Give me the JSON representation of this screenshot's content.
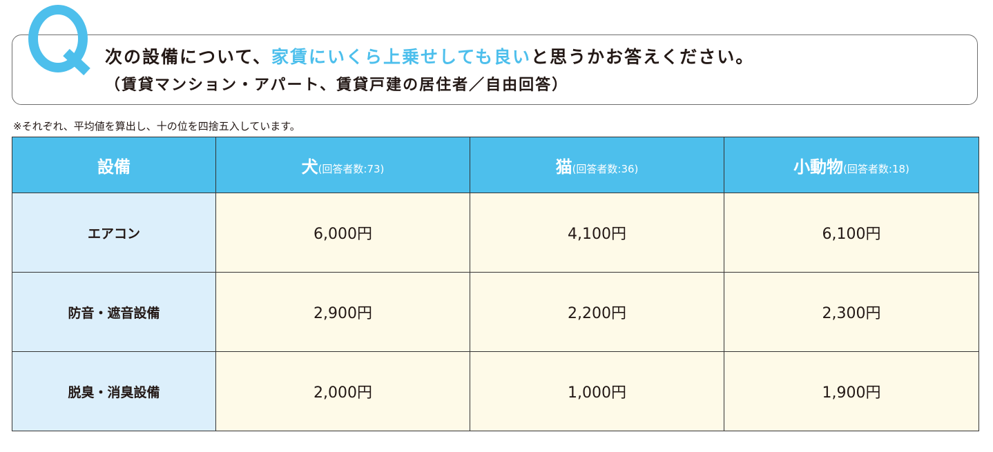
{
  "question": {
    "mark": "Q",
    "line1_prefix": "次の設備について、",
    "line1_highlight": "家賃にいくら上乗せしても良い",
    "line1_suffix": "と思うかお答えください。",
    "line2": "（賃貸マンション・アパート、賃貸戸建の居住者／自由回答）"
  },
  "note": "※それぞれ、平均値を算出し、十の位を四捨五入しています。",
  "colors": {
    "accent": "#4dbfec",
    "label_bg": "#dceffb",
    "cell_bg": "#fefae8"
  },
  "table": {
    "headers": [
      {
        "main": "設備",
        "sub": ""
      },
      {
        "main": "犬",
        "sub": "(回答者数:73)"
      },
      {
        "main": "猫",
        "sub": "(回答者数:36)"
      },
      {
        "main": "小動物",
        "sub": "(回答者数:18)"
      }
    ],
    "rows": [
      {
        "label": "エアコン",
        "values": [
          "6,000円",
          "4,100円",
          "6,100円"
        ]
      },
      {
        "label": "防音・遮音設備",
        "values": [
          "2,900円",
          "2,200円",
          "2,300円"
        ]
      },
      {
        "label": "脱臭・消臭設備",
        "values": [
          "2,000円",
          "1,000円",
          "1,900円"
        ]
      }
    ]
  }
}
